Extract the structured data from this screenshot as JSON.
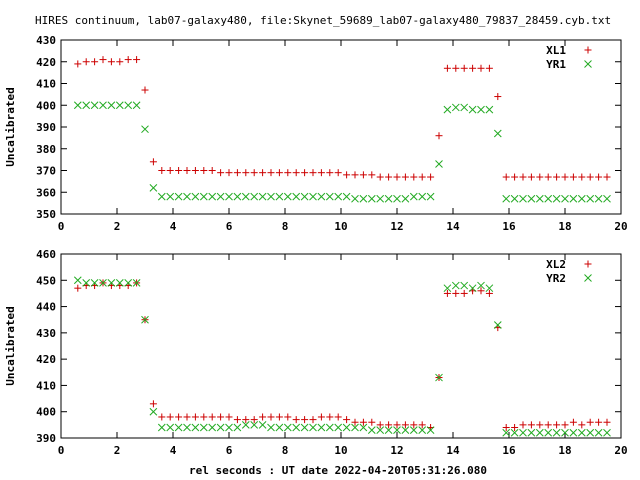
{
  "title": "HIRES continuum, lab07-galaxy480, file:Skynet_59689_lab07-galaxy480_79837_28459.cyb.txt",
  "xlabel": "rel seconds : UT date 2022-04-20T05:31:26.080",
  "colors": {
    "red": "#cc0000",
    "green": "#22aa22"
  },
  "chart_data": [
    {
      "type": "scatter",
      "ylabel": "Uncalibrated",
      "xlim": [
        0,
        20
      ],
      "ylim": [
        350,
        430
      ],
      "xticks": [
        0,
        2,
        4,
        6,
        8,
        10,
        12,
        14,
        16,
        18,
        20
      ],
      "yticks": [
        350,
        360,
        370,
        380,
        390,
        400,
        410,
        420,
        430
      ],
      "grid": false,
      "legend_position": "top-right",
      "series": [
        {
          "name": "XL1",
          "marker": "plus",
          "color": "#cc0000",
          "x": [
            0.6,
            0.9,
            1.2,
            1.5,
            1.8,
            2.1,
            2.4,
            2.7,
            3.0,
            3.3,
            3.6,
            3.9,
            4.2,
            4.5,
            4.8,
            5.1,
            5.4,
            5.7,
            6.0,
            6.3,
            6.6,
            6.9,
            7.2,
            7.5,
            7.8,
            8.1,
            8.4,
            8.7,
            9.0,
            9.3,
            9.6,
            9.9,
            10.2,
            10.5,
            10.8,
            11.1,
            11.4,
            11.7,
            12.0,
            12.3,
            12.6,
            12.9,
            13.2,
            13.5,
            13.8,
            14.1,
            14.4,
            14.7,
            15.0,
            15.3,
            15.6,
            15.9,
            16.2,
            16.5,
            16.8,
            17.1,
            17.4,
            17.7,
            18.0,
            18.3,
            18.6,
            18.9,
            19.2,
            19.5
          ],
          "y": [
            419,
            420,
            420,
            421,
            420,
            420,
            421,
            421,
            407,
            374,
            370,
            370,
            370,
            370,
            370,
            370,
            370,
            369,
            369,
            369,
            369,
            369,
            369,
            369,
            369,
            369,
            369,
            369,
            369,
            369,
            369,
            369,
            368,
            368,
            368,
            368,
            367,
            367,
            367,
            367,
            367,
            367,
            367,
            386,
            417,
            417,
            417,
            417,
            417,
            417,
            404,
            367,
            367,
            367,
            367,
            367,
            367,
            367,
            367,
            367,
            367,
            367,
            367,
            367
          ]
        },
        {
          "name": "YR1",
          "marker": "cross",
          "color": "#22aa22",
          "x": [
            0.6,
            0.9,
            1.2,
            1.5,
            1.8,
            2.1,
            2.4,
            2.7,
            3.0,
            3.3,
            3.6,
            3.9,
            4.2,
            4.5,
            4.8,
            5.1,
            5.4,
            5.7,
            6.0,
            6.3,
            6.6,
            6.9,
            7.2,
            7.5,
            7.8,
            8.1,
            8.4,
            8.7,
            9.0,
            9.3,
            9.6,
            9.9,
            10.2,
            10.5,
            10.8,
            11.1,
            11.4,
            11.7,
            12.0,
            12.3,
            12.6,
            12.9,
            13.2,
            13.5,
            13.8,
            14.1,
            14.4,
            14.7,
            15.0,
            15.3,
            15.6,
            15.9,
            16.2,
            16.5,
            16.8,
            17.1,
            17.4,
            17.7,
            18.0,
            18.3,
            18.6,
            18.9,
            19.2,
            19.5
          ],
          "y": [
            400,
            400,
            400,
            400,
            400,
            400,
            400,
            400,
            389,
            362,
            358,
            358,
            358,
            358,
            358,
            358,
            358,
            358,
            358,
            358,
            358,
            358,
            358,
            358,
            358,
            358,
            358,
            358,
            358,
            358,
            358,
            358,
            358,
            357,
            357,
            357,
            357,
            357,
            357,
            357,
            358,
            358,
            358,
            373,
            398,
            399,
            399,
            398,
            398,
            398,
            387,
            357,
            357,
            357,
            357,
            357,
            357,
            357,
            357,
            357,
            357,
            357,
            357,
            357
          ]
        }
      ]
    },
    {
      "type": "scatter",
      "ylabel": "Uncalibrated",
      "xlim": [
        0,
        20
      ],
      "ylim": [
        390,
        460
      ],
      "xticks": [
        0,
        2,
        4,
        6,
        8,
        10,
        12,
        14,
        16,
        18,
        20
      ],
      "yticks": [
        390,
        400,
        410,
        420,
        430,
        440,
        450,
        460
      ],
      "grid": false,
      "legend_position": "top-right",
      "series": [
        {
          "name": "XL2",
          "marker": "plus",
          "color": "#cc0000",
          "x": [
            0.6,
            0.9,
            1.2,
            1.5,
            1.8,
            2.1,
            2.4,
            2.7,
            3.0,
            3.3,
            3.6,
            3.9,
            4.2,
            4.5,
            4.8,
            5.1,
            5.4,
            5.7,
            6.0,
            6.3,
            6.6,
            6.9,
            7.2,
            7.5,
            7.8,
            8.1,
            8.4,
            8.7,
            9.0,
            9.3,
            9.6,
            9.9,
            10.2,
            10.5,
            10.8,
            11.1,
            11.4,
            11.7,
            12.0,
            12.3,
            12.6,
            12.9,
            13.2,
            13.5,
            13.8,
            14.1,
            14.4,
            14.7,
            15.0,
            15.3,
            15.6,
            15.9,
            16.2,
            16.5,
            16.8,
            17.1,
            17.4,
            17.7,
            18.0,
            18.3,
            18.6,
            18.9,
            19.2,
            19.5
          ],
          "y": [
            447,
            448,
            448,
            449,
            448,
            448,
            448,
            449,
            435,
            403,
            398,
            398,
            398,
            398,
            398,
            398,
            398,
            398,
            398,
            397,
            397,
            397,
            398,
            398,
            398,
            398,
            397,
            397,
            397,
            398,
            398,
            398,
            397,
            396,
            396,
            396,
            395,
            395,
            395,
            395,
            395,
            395,
            394,
            413,
            445,
            445,
            445,
            446,
            446,
            445,
            432,
            394,
            394,
            395,
            395,
            395,
            395,
            395,
            395,
            396,
            395,
            396,
            396,
            396
          ]
        },
        {
          "name": "YR2",
          "marker": "cross",
          "color": "#22aa22",
          "x": [
            0.6,
            0.9,
            1.2,
            1.5,
            1.8,
            2.1,
            2.4,
            2.7,
            3.0,
            3.3,
            3.6,
            3.9,
            4.2,
            4.5,
            4.8,
            5.1,
            5.4,
            5.7,
            6.0,
            6.3,
            6.6,
            6.9,
            7.2,
            7.5,
            7.8,
            8.1,
            8.4,
            8.7,
            9.0,
            9.3,
            9.6,
            9.9,
            10.2,
            10.5,
            10.8,
            11.1,
            11.4,
            11.7,
            12.0,
            12.3,
            12.6,
            12.9,
            13.2,
            13.5,
            13.8,
            14.1,
            14.4,
            14.7,
            15.0,
            15.3,
            15.6,
            15.9,
            16.2,
            16.5,
            16.8,
            17.1,
            17.4,
            17.7,
            18.0,
            18.3,
            18.6,
            18.9,
            19.2,
            19.5
          ],
          "y": [
            450,
            449,
            449,
            449,
            449,
            449,
            449,
            449,
            435,
            400,
            394,
            394,
            394,
            394,
            394,
            394,
            394,
            394,
            394,
            394,
            395,
            395,
            395,
            394,
            394,
            394,
            394,
            394,
            394,
            394,
            394,
            394,
            394,
            394,
            394,
            393,
            393,
            393,
            393,
            393,
            393,
            393,
            393,
            413,
            447,
            448,
            448,
            447,
            448,
            447,
            433,
            392,
            392,
            392,
            392,
            392,
            392,
            392,
            392,
            392,
            392,
            392,
            392,
            392
          ]
        }
      ]
    }
  ]
}
